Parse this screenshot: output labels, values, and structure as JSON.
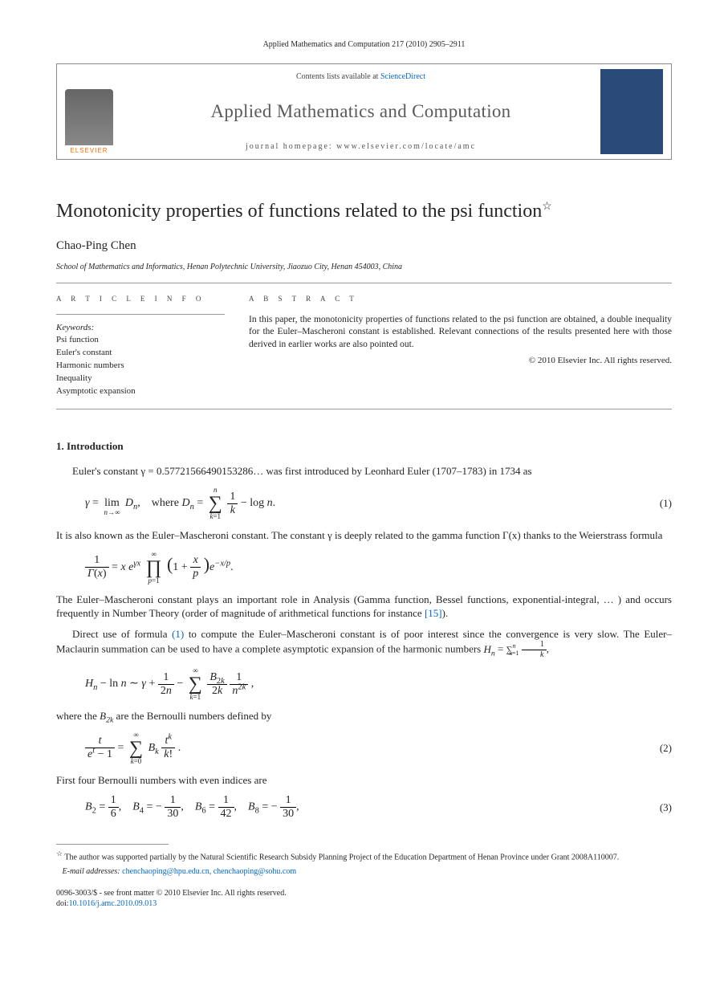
{
  "header": {
    "citation": "Applied Mathematics and Computation 217 (2010) 2905–2911"
  },
  "banner": {
    "contents_prefix": "Contents lists available at ",
    "contents_link": "ScienceDirect",
    "journal_name": "Applied Mathematics and Computation",
    "homepage_label": "journal homepage: www.elsevier.com/locate/amc",
    "publisher": "ELSEVIER"
  },
  "article": {
    "title": "Monotonicity properties of functions related to the psi function",
    "title_marker": "☆",
    "author": "Chao-Ping Chen",
    "affiliation": "School of Mathematics and Informatics, Henan Polytechnic University, Jiaozuo City, Henan 454003, China"
  },
  "left_col": {
    "heading": "A R T I C L E   I N F O",
    "keywords_label": "Keywords:",
    "keywords": [
      "Psi function",
      "Euler's constant",
      "Harmonic numbers",
      "Inequality",
      "Asymptotic expansion"
    ]
  },
  "right_col": {
    "heading": "A B S T R A C T",
    "text": "In this paper, the monotonicity properties of functions related to the psi function are obtained, a double inequality for the Euler–Mascheroni constant is established. Relevant connections of the results presented here with those derived in earlier works are also pointed out.",
    "copyright": "© 2010 Elsevier Inc. All rights reserved."
  },
  "section1": {
    "heading": "1. Introduction",
    "p1_a": "Euler's constant ",
    "p1_b": " was first introduced by Leonhard Euler (1707–1783) in 1734 as",
    "gamma_val": "γ = 0.57721566490153286…",
    "eq1_num": "(1)",
    "p2": "It is also known as the Euler–Mascheroni constant. The constant γ is deeply related to the gamma function Γ(x) thanks to the Weierstrass formula",
    "p3_a": "The Euler–Mascheroni constant plays an important role in Analysis (Gamma function, Bessel functions, exponential-integral, … ) and occurs frequently in Number Theory (order of magnitude of arithmetical functions for instance ",
    "p3_ref": "[15]",
    "p3_b": ").",
    "p4_a": "Direct use of formula ",
    "p4_ref": "(1)",
    "p4_b": " to compute the Euler–Mascheroni constant is of poor interest since the convergence is very slow. The Euler–Maclaurin summation can be used to have a complete asymptotic expansion of the harmonic numbers ",
    "p5_a": "where the ",
    "p5_b": " are the Bernoulli numbers defined by",
    "eq2_num": "(2)",
    "p6": "First four Bernoulli numbers with even indices are",
    "eq3_num": "(3)"
  },
  "footnotes": {
    "funding_marker": "☆",
    "funding": "The author was supported partially by the Natural Scientific Research Subsidy Planning Project of the Education Department of Henan Province under Grant 2008A110007.",
    "email_label": "E-mail addresses:",
    "emails": "chenchaoping@hpu.edu.cn, chenchaoping@sohu.com"
  },
  "bottom": {
    "issn_line": "0096-3003/$ - see front matter © 2010 Elsevier Inc. All rights reserved.",
    "doi_label": "doi:",
    "doi": "10.1016/j.amc.2010.09.013"
  },
  "colors": {
    "link": "#0066cc",
    "elsevier_orange": "#ff6b00",
    "text": "#252525",
    "rule": "#999999",
    "cover_bg": "#2a4a7a"
  }
}
